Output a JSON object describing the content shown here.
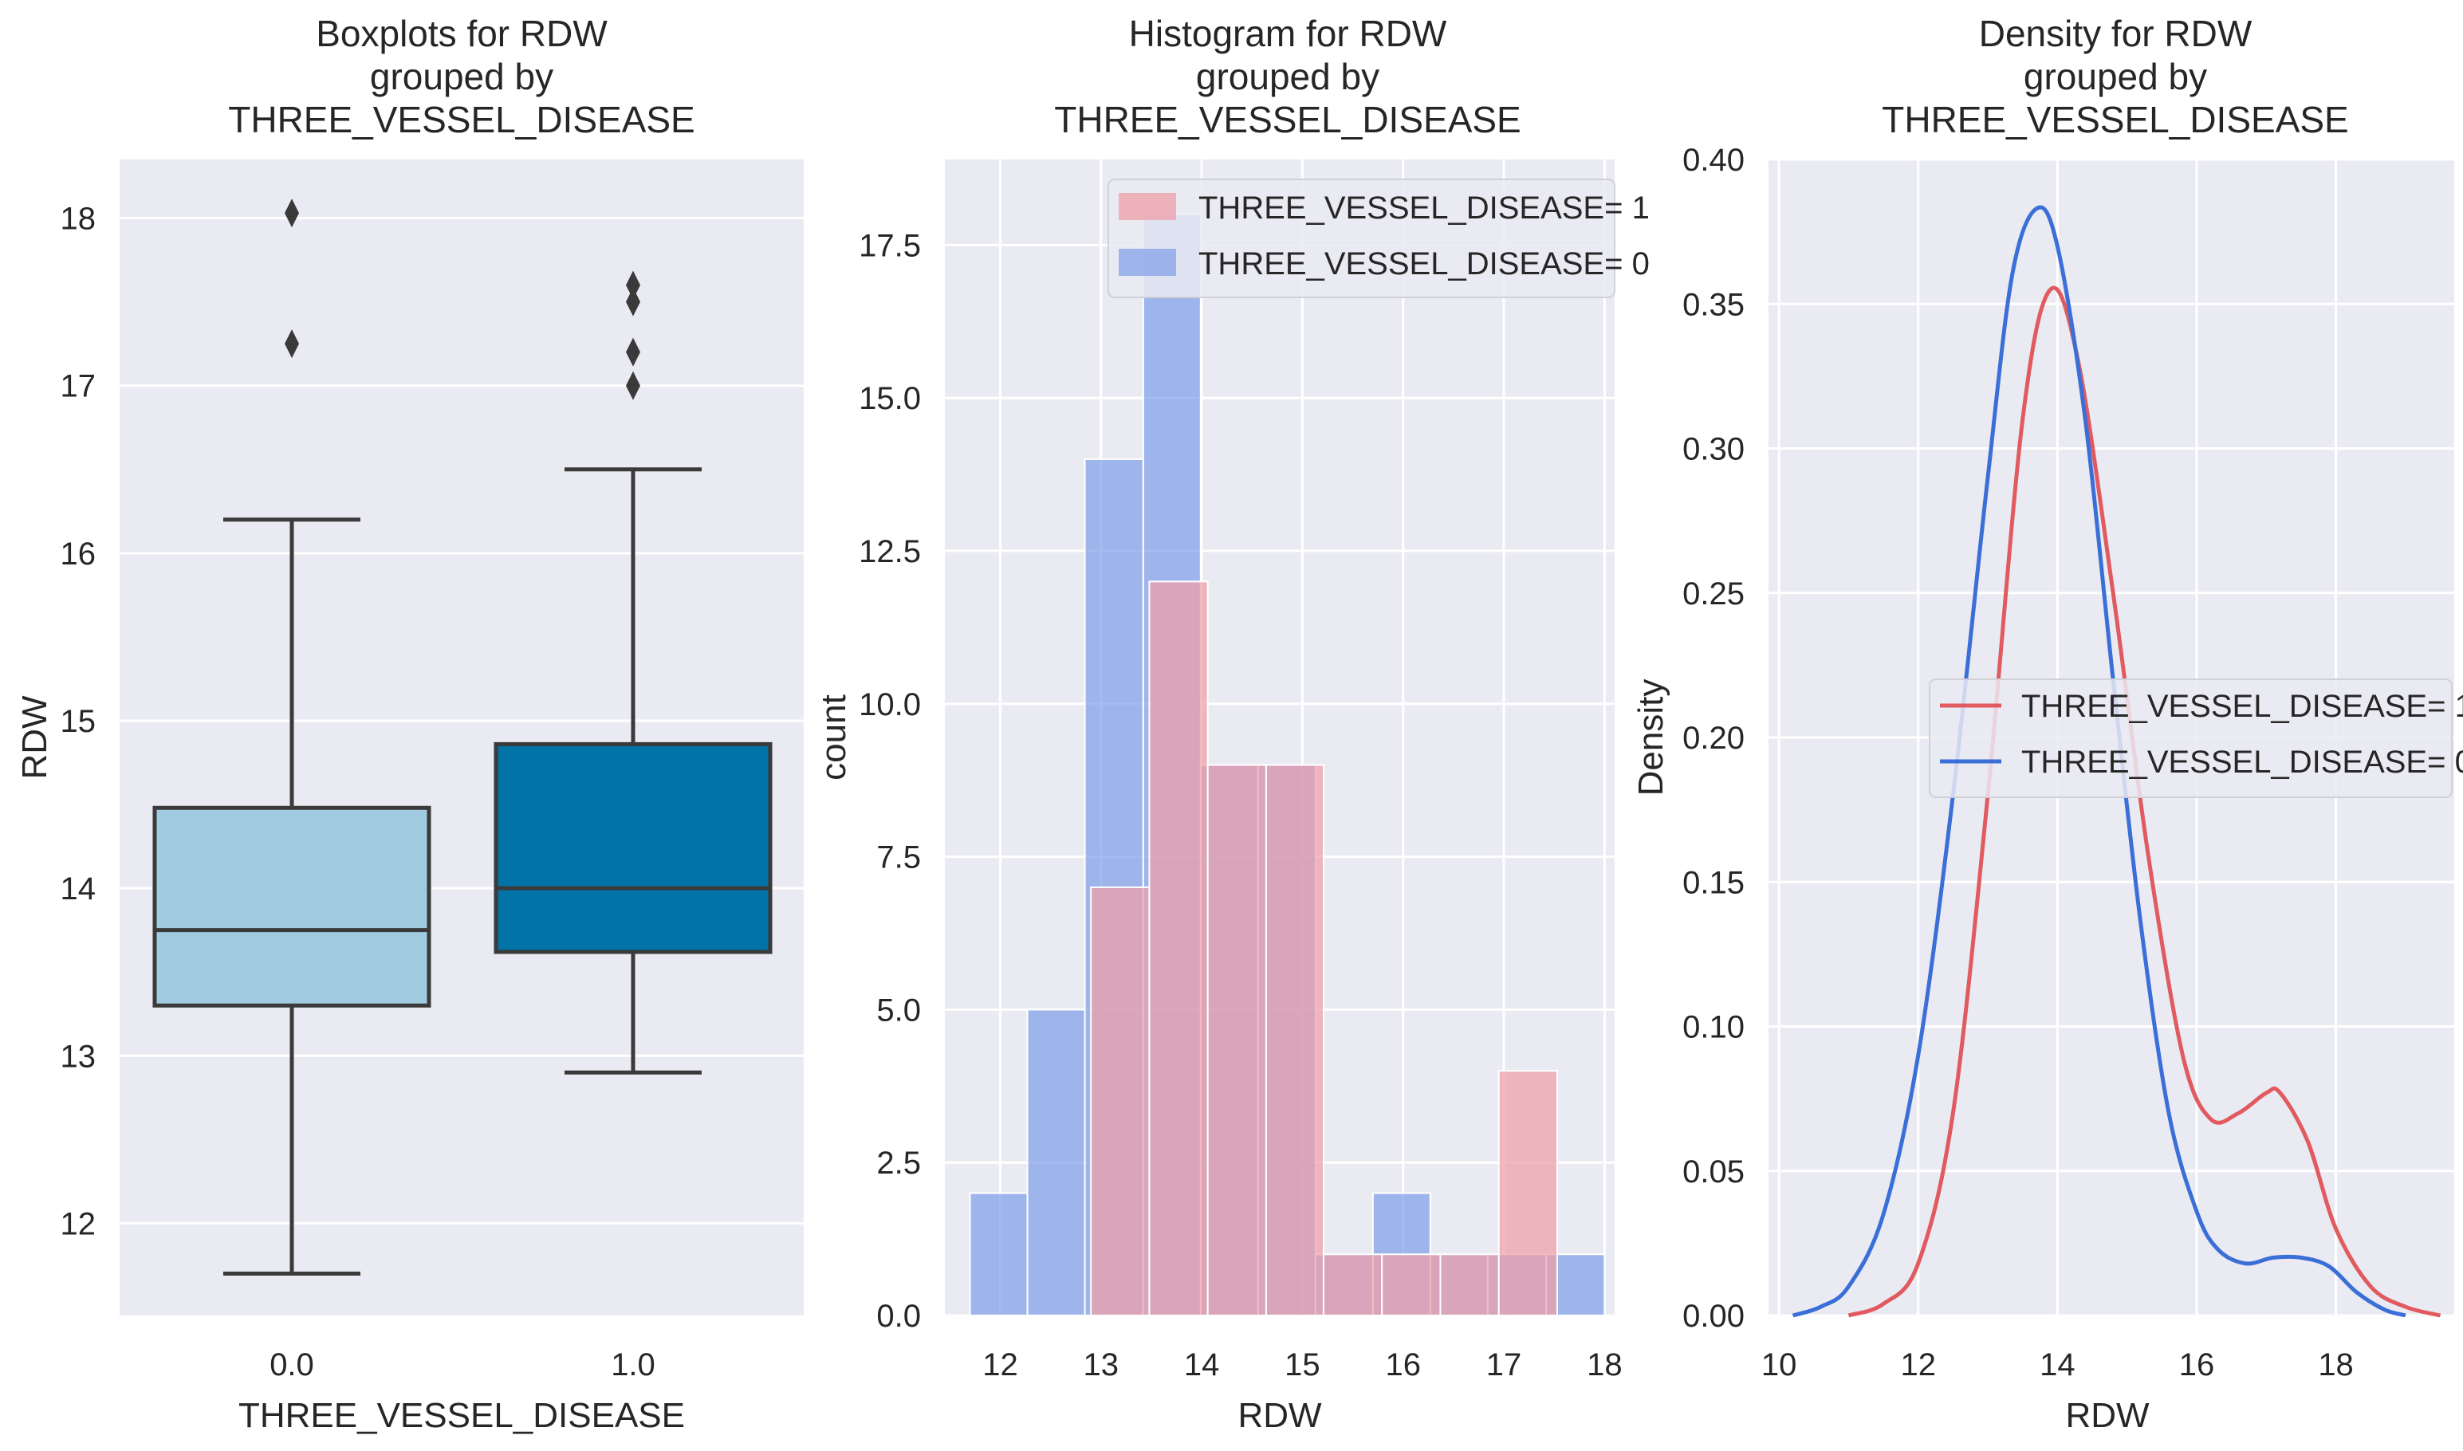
{
  "chart_data": [
    {
      "type": "box",
      "title_lines": [
        "Boxplots for RDW",
        "grouped by",
        "THREE_VESSEL_DISEASE"
      ],
      "xlabel": "THREE_VESSEL_DISEASE",
      "ylabel": "RDW",
      "ylim": [
        11.45,
        18.35
      ],
      "yticks": [
        12,
        13,
        14,
        15,
        16,
        17,
        18
      ],
      "categories": [
        "0.0",
        "1.0"
      ],
      "boxes": [
        {
          "category": "0.0",
          "whisker_low": 11.7,
          "q1": 13.3,
          "median": 13.75,
          "q3": 14.48,
          "whisker_high": 16.2,
          "outliers": [
            17.25,
            18.03
          ],
          "color": "#a1cbe0"
        },
        {
          "category": "1.0",
          "whisker_low": 12.9,
          "q1": 13.62,
          "median": 14.0,
          "q3": 14.86,
          "whisker_high": 16.5,
          "outliers": [
            17.0,
            17.2,
            17.5,
            17.6
          ],
          "color": "#0173a7"
        }
      ]
    },
    {
      "type": "histogram",
      "title_lines": [
        "Histogram for RDW",
        "grouped by",
        "THREE_VESSEL_DISEASE"
      ],
      "xlabel": "RDW",
      "ylabel": "count",
      "xlim": [
        11.45,
        18.1
      ],
      "ylim": [
        0,
        18.9
      ],
      "xticks": [
        12,
        13,
        14,
        15,
        16,
        17,
        18
      ],
      "yticks": [
        0.0,
        2.5,
        5.0,
        7.5,
        10.0,
        12.5,
        15.0,
        17.5
      ],
      "legend": [
        "THREE_VESSEL_DISEASE= 1",
        "THREE_VESSEL_DISEASE= 0"
      ],
      "series": [
        {
          "name": "THREE_VESSEL_DISEASE= 0",
          "color": "#7d9ee8",
          "bins": [
            [
              11.7,
              12.27,
              2
            ],
            [
              12.27,
              12.84,
              5
            ],
            [
              12.84,
              13.42,
              14
            ],
            [
              13.42,
              13.99,
              18
            ],
            [
              13.99,
              14.56,
              9
            ],
            [
              14.56,
              15.13,
              9
            ],
            [
              15.13,
              15.7,
              1
            ],
            [
              15.7,
              16.27,
              2
            ],
            [
              16.27,
              16.84,
              1
            ],
            [
              16.84,
              17.42,
              1
            ],
            [
              17.42,
              18.0,
              1
            ]
          ]
        },
        {
          "name": "THREE_VESSEL_DISEASE= 1",
          "color": "#ef9fa8",
          "bins": [
            [
              12.9,
              13.48,
              7
            ],
            [
              13.48,
              14.06,
              12
            ],
            [
              14.06,
              14.64,
              9
            ],
            [
              14.64,
              15.21,
              9
            ],
            [
              15.21,
              15.79,
              1
            ],
            [
              15.79,
              16.37,
              1
            ],
            [
              16.37,
              16.95,
              1
            ],
            [
              16.95,
              17.53,
              4
            ]
          ]
        }
      ]
    },
    {
      "type": "line",
      "title_lines": [
        "Density for RDW",
        "grouped by",
        "THREE_VESSEL_DISEASE"
      ],
      "xlabel": "RDW",
      "ylabel": "Density",
      "xlim": [
        9.85,
        19.7
      ],
      "ylim": [
        0,
        0.4
      ],
      "xticks": [
        10,
        12,
        14,
        16,
        18
      ],
      "yticks": [
        0.0,
        0.05,
        0.1,
        0.15,
        0.2,
        0.25,
        0.3,
        0.35,
        0.4
      ],
      "legend": [
        "THREE_VESSEL_DISEASE= 1",
        "THREE_VESSEL_DISEASE= 0"
      ],
      "series": [
        {
          "name": "THREE_VESSEL_DISEASE= 1",
          "color": "#e05a5f",
          "x": [
            11.0,
            11.5,
            12.0,
            12.5,
            13.0,
            13.5,
            13.9,
            14.3,
            14.8,
            15.3,
            15.8,
            16.2,
            16.6,
            17.0,
            17.2,
            17.6,
            18.0,
            18.5,
            19.0,
            19.5
          ],
          "y": [
            0.0,
            0.004,
            0.018,
            0.07,
            0.18,
            0.31,
            0.355,
            0.33,
            0.25,
            0.16,
            0.09,
            0.068,
            0.07,
            0.077,
            0.077,
            0.06,
            0.03,
            0.01,
            0.003,
            0.0
          ]
        },
        {
          "name": "THREE_VESSEL_DISEASE= 0",
          "color": "#3a6fd8",
          "x": [
            10.2,
            10.6,
            11.0,
            11.5,
            12.0,
            12.5,
            13.0,
            13.35,
            13.7,
            14.0,
            14.4,
            14.8,
            15.2,
            15.6,
            16.0,
            16.3,
            16.7,
            17.1,
            17.5,
            17.9,
            18.3,
            18.7,
            19.0
          ],
          "y": [
            0.0,
            0.003,
            0.01,
            0.035,
            0.09,
            0.18,
            0.29,
            0.36,
            0.383,
            0.37,
            0.31,
            0.22,
            0.135,
            0.07,
            0.036,
            0.023,
            0.018,
            0.02,
            0.02,
            0.017,
            0.008,
            0.002,
            0.0
          ]
        }
      ]
    }
  ]
}
